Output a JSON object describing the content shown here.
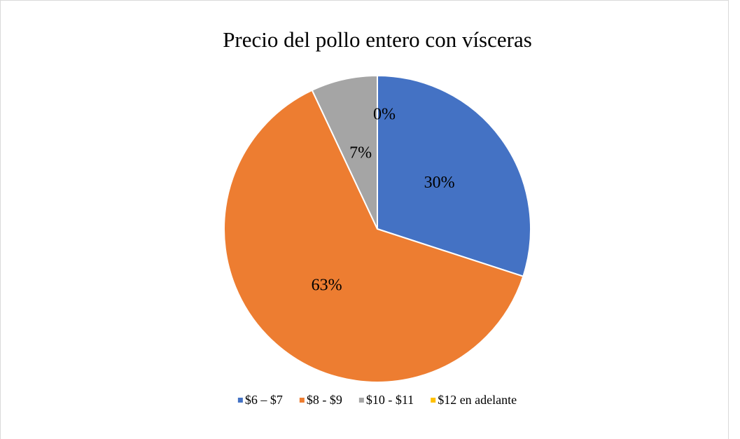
{
  "chart_data": {
    "type": "pie",
    "title": "Precio del pollo entero con vísceras",
    "categories": [
      "$6 – $7",
      "$8 - $9",
      "$10 - $11",
      "$12 en adelante"
    ],
    "values": [
      30,
      63,
      7,
      0
    ],
    "value_labels": [
      "30%",
      "63%",
      "7%",
      "0%"
    ],
    "colors": [
      "#4472c4",
      "#ed7d31",
      "#a5a5a5",
      "#ffc000"
    ],
    "legend": "bottom"
  }
}
